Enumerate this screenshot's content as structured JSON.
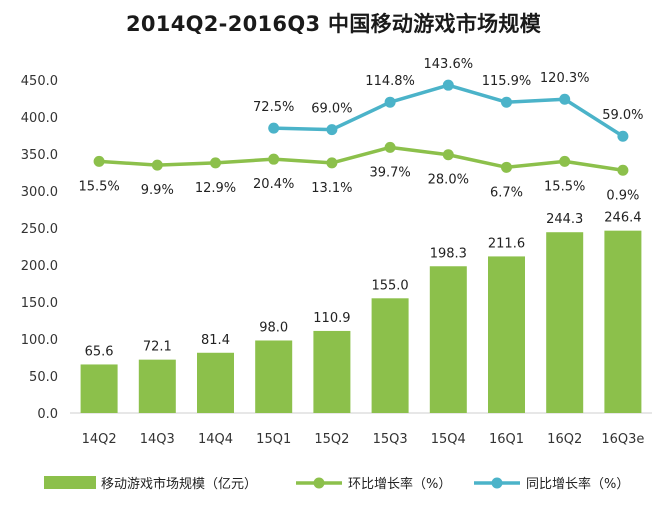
{
  "title": "2014Q2-2016Q3 中国移动游戏市场规模",
  "chart_data": {
    "type": "bar+line",
    "title": "2014Q2-2016Q3 中国移动游戏市场规模",
    "categories": [
      "14Q2",
      "14Q3",
      "14Q4",
      "15Q1",
      "15Q2",
      "15Q3",
      "15Q4",
      "16Q1",
      "16Q2",
      "16Q3e"
    ],
    "ylim": [
      0,
      450
    ],
    "yticks": [
      "0.0",
      "50.0",
      "100.0",
      "150.0",
      "200.0",
      "250.0",
      "300.0",
      "350.0",
      "400.0",
      "450.0"
    ],
    "series": [
      {
        "name": "移动游戏市场规模（亿元）",
        "kind": "bar",
        "color": "#8cc04b",
        "values": [
          65.6,
          72.1,
          81.4,
          98.0,
          110.9,
          155.0,
          198.3,
          211.6,
          244.3,
          246.4
        ],
        "labels": [
          "65.6",
          "72.1",
          "81.4",
          "98.0",
          "110.9",
          "155.0",
          "198.3",
          "211.6",
          "244.3",
          "246.4"
        ]
      },
      {
        "name": "环比增长率（%）",
        "kind": "line",
        "color": "#8cc04b",
        "plot_y": [
          340,
          335,
          338,
          343,
          338,
          359,
          349,
          332,
          340,
          328
        ],
        "labels": [
          "15.5%",
          "9.9%",
          "12.9%",
          "20.4%",
          "13.1%",
          "39.7%",
          "28.0%",
          "6.7%",
          "15.5%",
          "0.9%"
        ]
      },
      {
        "name": "同比增长率（%）",
        "kind": "line",
        "color": "#4bb3c9",
        "start_index": 3,
        "plot_y": [
          385,
          383,
          420,
          443,
          420,
          424,
          374
        ],
        "labels": [
          "72.5%",
          "69.0%",
          "114.8%",
          "143.6%",
          "115.9%",
          "120.3%",
          "59.0%"
        ]
      }
    ]
  }
}
